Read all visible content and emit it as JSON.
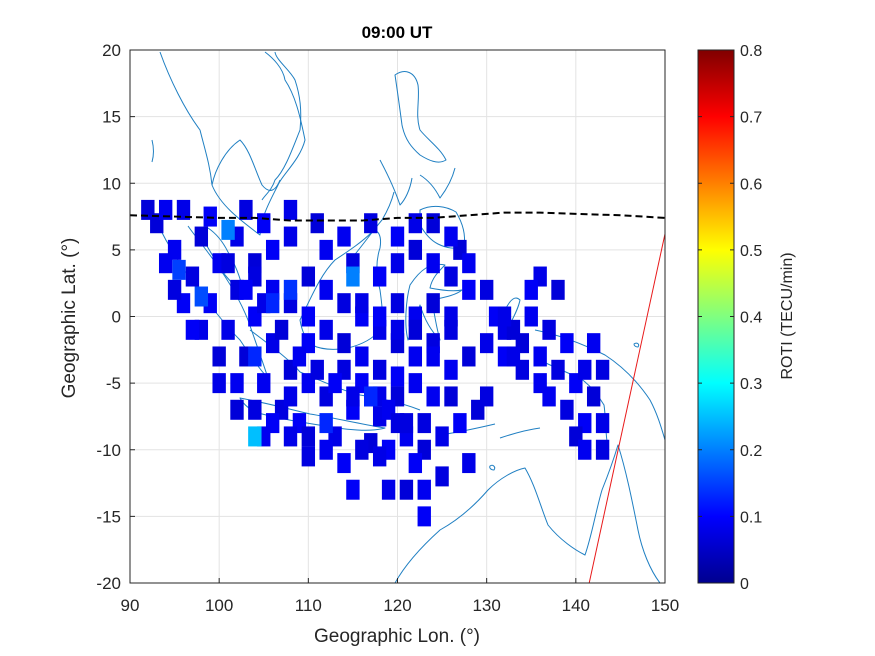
{
  "chart_data": {
    "type": "heatmap",
    "title": "09:00 UT",
    "xlabel": "Geographic Lon. (°)",
    "ylabel": "Geographic Lat. (°)",
    "xlim": [
      90,
      150
    ],
    "ylim": [
      -20,
      20
    ],
    "xticks": [
      "90",
      "100",
      "110",
      "120",
      "130",
      "140",
      "150"
    ],
    "yticks": [
      "20",
      "15",
      "10",
      "5",
      "0",
      "-5",
      "-10",
      "-15",
      "-20"
    ],
    "grid": true,
    "colorbar": {
      "label": "ROTI (TECU/min)",
      "range": [
        0,
        0.8
      ],
      "ticks": [
        "0.8",
        "0.7",
        "0.6",
        "0.5",
        "0.4",
        "0.3",
        "0.2",
        "0.1",
        "0"
      ],
      "colormap": "jet"
    },
    "cell_size_deg": 1.5,
    "base_value": 0.07,
    "roti_cells": [
      [
        [
          93,
          7
        ],
        [
          95,
          5
        ],
        [
          97,
          3
        ],
        [
          99,
          1
        ],
        [
          101,
          -1
        ],
        [
          103,
          -3
        ],
        [
          105,
          -5
        ],
        [
          107,
          -7
        ],
        [
          109,
          -8
        ],
        [
          113,
          -9
        ],
        [
          117,
          -9.5
        ],
        [
          121,
          -9
        ],
        [
          123,
          -8
        ]
      ],
      [
        [
          96,
          8
        ],
        [
          98,
          6
        ],
        [
          100,
          4
        ],
        [
          102,
          2
        ],
        [
          104,
          0
        ],
        [
          106,
          -2
        ],
        [
          108,
          -4
        ],
        [
          110,
          -5
        ],
        [
          112,
          -6
        ],
        [
          115,
          -7
        ],
        [
          118,
          -7.5
        ]
      ],
      [
        [
          99,
          7.5
        ],
        [
          102,
          6
        ],
        [
          104,
          4
        ],
        [
          106,
          2
        ],
        [
          108,
          1
        ],
        [
          110,
          0
        ],
        [
          112,
          -1
        ],
        [
          114,
          -2
        ],
        [
          116,
          -3
        ],
        [
          118,
          -4
        ],
        [
          120,
          -4.5
        ]
      ],
      [
        [
          104,
          3
        ],
        [
          106,
          5
        ],
        [
          108,
          6
        ],
        [
          110,
          3
        ],
        [
          112,
          2
        ],
        [
          114,
          1
        ],
        [
          116,
          0
        ],
        [
          118,
          -1
        ],
        [
          120,
          -2
        ],
        [
          122,
          -3
        ],
        [
          124,
          -2
        ]
      ],
      [
        [
          112,
          5
        ],
        [
          115,
          4
        ],
        [
          118,
          3
        ],
        [
          120,
          4
        ],
        [
          122,
          5
        ],
        [
          124,
          4
        ],
        [
          126,
          3
        ],
        [
          128,
          2
        ],
        [
          126,
          0
        ],
        [
          124,
          1
        ],
        [
          122,
          0
        ],
        [
          120,
          1
        ],
        [
          118,
          0
        ],
        [
          116,
          1
        ]
      ],
      [
        [
          127,
          5
        ],
        [
          128,
          4
        ],
        [
          130,
          2
        ],
        [
          131,
          0
        ],
        [
          132,
          -1
        ],
        [
          134,
          -2
        ],
        [
          136,
          -3
        ],
        [
          138,
          -4
        ],
        [
          140,
          -5
        ],
        [
          130,
          -2
        ],
        [
          128,
          -3
        ],
        [
          126,
          -4
        ]
      ],
      [
        [
          120,
          -1
        ],
        [
          122,
          -1
        ],
        [
          124,
          -3
        ],
        [
          126,
          -1
        ],
        [
          116,
          -5
        ],
        [
          118,
          -6
        ],
        [
          120,
          -6
        ],
        [
          122,
          -5
        ],
        [
          114,
          -4
        ],
        [
          110,
          -2
        ],
        [
          108,
          -6
        ]
      ],
      [
        [
          96,
          1
        ],
        [
          98,
          -1
        ],
        [
          100,
          -3
        ],
        [
          102,
          -5
        ],
        [
          104,
          -7
        ],
        [
          106,
          -8
        ],
        [
          108,
          -9
        ],
        [
          110,
          -9
        ],
        [
          112,
          -10
        ],
        [
          116,
          -10
        ],
        [
          119,
          -10
        ]
      ],
      [
        [
          101,
          4
        ],
        [
          103,
          2
        ],
        [
          105,
          1
        ],
        [
          107,
          -1
        ],
        [
          109,
          -3
        ],
        [
          111,
          -4
        ],
        [
          113,
          -5
        ],
        [
          115,
          -6
        ],
        [
          117,
          -6
        ],
        [
          119,
          -7
        ],
        [
          121,
          -8
        ]
      ],
      [
        [
          94,
          4
        ],
        [
          95,
          2
        ],
        [
          97,
          -1
        ],
        [
          100,
          -5
        ],
        [
          102,
          -7
        ],
        [
          105,
          -9
        ],
        [
          110,
          -10.5
        ],
        [
          114,
          -11
        ],
        [
          118,
          -10.5
        ],
        [
          123,
          -10
        ]
      ],
      [
        [
          92,
          8
        ],
        [
          94,
          8
        ],
        [
          103,
          8
        ],
        [
          105,
          7
        ],
        [
          108,
          8
        ],
        [
          111,
          7
        ],
        [
          114,
          6
        ],
        [
          117,
          7
        ],
        [
          120,
          6
        ],
        [
          122,
          7
        ],
        [
          124,
          7
        ],
        [
          126,
          6
        ]
      ],
      [
        [
          125,
          -9
        ],
        [
          133,
          -1
        ],
        [
          135,
          0
        ],
        [
          137,
          -1
        ],
        [
          139,
          -2
        ],
        [
          141,
          -4
        ],
        [
          142,
          -6
        ],
        [
          136,
          -5
        ],
        [
          134,
          -4
        ],
        [
          132,
          -3
        ],
        [
          132,
          0
        ]
      ],
      [
        [
          115,
          -13
        ],
        [
          119,
          -13
        ],
        [
          121,
          -13
        ],
        [
          123,
          -13
        ],
        [
          125,
          -12
        ],
        [
          123,
          -15
        ],
        [
          128,
          -11
        ],
        [
          129,
          -7
        ],
        [
          137,
          -6
        ],
        [
          139,
          -7
        ],
        [
          141,
          -8
        ],
        [
          143,
          -8
        ],
        [
          140,
          -9
        ],
        [
          141,
          -10
        ],
        [
          143,
          -10
        ]
      ],
      [
        [
          130,
          -6
        ],
        [
          122,
          -11
        ],
        [
          136,
          3
        ],
        [
          138,
          2
        ],
        [
          142,
          -2
        ],
        [
          143,
          -4
        ],
        [
          135,
          2
        ],
        [
          133,
          -3
        ],
        [
          126,
          -6
        ],
        [
          124,
          -6
        ],
        [
          120,
          -8
        ],
        [
          127,
          -8
        ]
      ]
    ],
    "elevated_cells": [
      {
        "lon": 115,
        "lat": 3,
        "value": 0.2
      },
      {
        "lon": 104,
        "lat": -9,
        "value": 0.25
      },
      {
        "lon": 101,
        "lat": 6.5,
        "value": 0.2
      },
      {
        "lon": 98,
        "lat": 1.5,
        "value": 0.16
      },
      {
        "lon": 95.5,
        "lat": 3.5,
        "value": 0.15
      },
      {
        "lon": 108,
        "lat": 2,
        "value": 0.14
      },
      {
        "lon": 117,
        "lat": -6,
        "value": 0.13
      },
      {
        "lon": 104,
        "lat": -3,
        "value": 0.13
      },
      {
        "lon": 106,
        "lat": 1,
        "value": 0.13
      },
      {
        "lon": 112,
        "lat": -8,
        "value": 0.13
      }
    ],
    "magnetic_equator": [
      [
        90,
        7.6
      ],
      [
        95,
        7.5
      ],
      [
        100,
        7.4
      ],
      [
        104,
        7.4
      ],
      [
        108,
        7.2
      ],
      [
        112,
        7.2
      ],
      [
        116,
        7.2
      ],
      [
        120,
        7.4
      ],
      [
        124,
        7.4
      ],
      [
        128,
        7.6
      ],
      [
        132,
        7.8
      ],
      [
        136,
        7.8
      ],
      [
        140,
        7.7
      ],
      [
        145,
        7.6
      ],
      [
        150,
        7.4
      ]
    ],
    "red_line": [
      [
        141.5,
        -20
      ],
      [
        150,
        6.2
      ]
    ]
  }
}
